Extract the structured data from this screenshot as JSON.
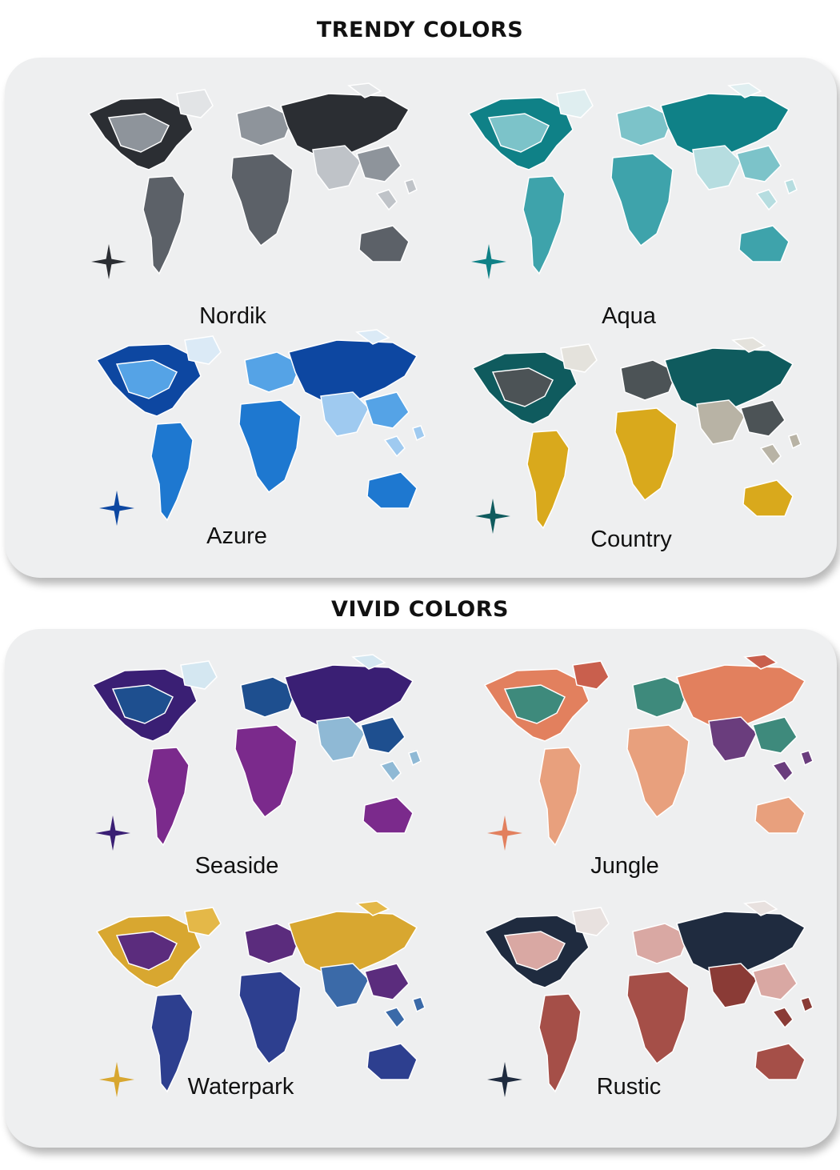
{
  "sections": [
    {
      "title": "TRENDY COLORS",
      "variants": [
        {
          "name": "Nordik",
          "palette": [
            "#2b2e33",
            "#5c6168",
            "#8e949b",
            "#bfc3c8",
            "#e2e4e6"
          ]
        },
        {
          "name": "Aqua",
          "palette": [
            "#0f8187",
            "#3ea3ab",
            "#7cc3c9",
            "#b6dde0",
            "#dfeef0"
          ]
        },
        {
          "name": "Azure",
          "palette": [
            "#0d47a1",
            "#1e78d0",
            "#55a3e6",
            "#9fcaf0",
            "#dbeaf6"
          ]
        },
        {
          "name": "Country",
          "palette": [
            "#0f5b5e",
            "#d9a91c",
            "#4c5356",
            "#b8b3a5",
            "#e4e2dc"
          ]
        }
      ]
    },
    {
      "title": "VIVID COLORS",
      "variants": [
        {
          "name": "Seaside",
          "palette": [
            "#3a1f74",
            "#7b2a8c",
            "#1e4f8f",
            "#8fb9d5",
            "#d4e7f1"
          ]
        },
        {
          "name": "Jungle",
          "palette": [
            "#e2805e",
            "#e8a07d",
            "#3e8a7c",
            "#6a3d7d",
            "#c95f4d"
          ]
        },
        {
          "name": "Waterpark",
          "palette": [
            "#d8a730",
            "#2d3f8f",
            "#5b2c7d",
            "#3b6aa8",
            "#e4b848"
          ]
        },
        {
          "name": "Rustic",
          "palette": [
            "#1f2b3f",
            "#a54f48",
            "#d9a8a3",
            "#8a3b36",
            "#e8e1df"
          ]
        }
      ]
    }
  ]
}
